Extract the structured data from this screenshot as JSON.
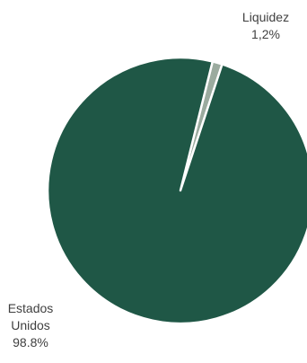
{
  "chart_data": {
    "type": "pie",
    "slices": [
      {
        "label_lines": [
          "Liquidez",
          "1,2%"
        ],
        "value": 1.2,
        "color": "#9bab9f"
      },
      {
        "label_lines": [
          "Estados",
          "Unidos",
          "98.8%"
        ],
        "value": 98.8,
        "color": "#1f5746"
      }
    ],
    "slice_border_color": "#ffffff",
    "legend": "none"
  }
}
